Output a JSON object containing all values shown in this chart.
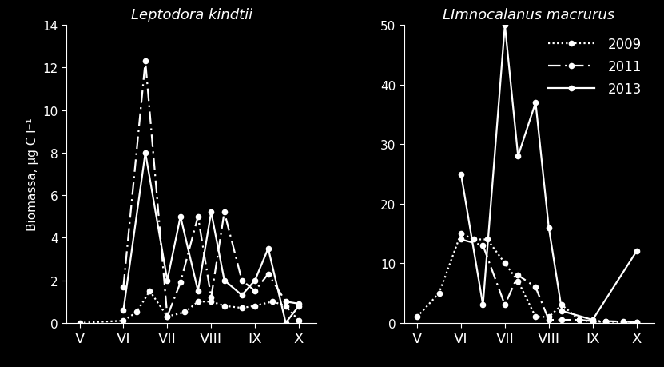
{
  "background_color": "#000000",
  "text_color": "#ffffff",
  "fig_width": 8.31,
  "fig_height": 4.6,
  "left_title": "Leptodora kindtii",
  "right_title": "LImnocalanus macrurus",
  "ylabel": "Biomassa, μg C l⁻¹",
  "x_labels": [
    "V",
    "VI",
    "VII",
    "VIII",
    "IX",
    "X"
  ],
  "x_ticks": [
    5,
    6,
    7,
    8,
    9,
    10
  ],
  "left_ylim": [
    0,
    14
  ],
  "left_yticks": [
    0,
    2,
    4,
    6,
    8,
    10,
    12,
    14
  ],
  "right_ylim": [
    0,
    50
  ],
  "right_yticks": [
    0,
    10,
    20,
    30,
    40,
    50
  ],
  "left_data": {
    "2009": {
      "x": [
        5.0,
        6.0,
        6.3,
        6.6,
        7.0,
        7.4,
        7.7,
        8.0,
        8.3,
        8.7,
        9.0,
        9.4,
        9.7,
        10.0
      ],
      "y": [
        0.0,
        0.1,
        0.5,
        1.5,
        0.3,
        0.5,
        1.0,
        1.0,
        0.8,
        0.7,
        0.8,
        1.0,
        0.8,
        0.1
      ]
    },
    "2011": {
      "x": [
        6.0,
        6.5,
        7.0,
        7.3,
        7.7,
        8.0,
        8.3,
        8.7,
        9.0,
        9.3,
        9.7,
        10.0
      ],
      "y": [
        1.7,
        12.3,
        0.3,
        1.9,
        5.0,
        1.2,
        5.2,
        2.0,
        1.5,
        2.3,
        1.0,
        0.9
      ]
    },
    "2013": {
      "x": [
        6.0,
        6.5,
        7.0,
        7.3,
        7.7,
        8.0,
        8.3,
        8.7,
        9.0,
        9.3,
        9.7,
        10.0
      ],
      "y": [
        0.6,
        8.0,
        2.0,
        5.0,
        1.5,
        5.2,
        2.0,
        1.3,
        2.0,
        3.5,
        0.0,
        0.8
      ]
    }
  },
  "right_data": {
    "2009": {
      "x": [
        5.0,
        5.5,
        6.0,
        6.3,
        6.6,
        7.0,
        7.3,
        7.7,
        8.0,
        8.3,
        8.7,
        9.0,
        9.3,
        9.7,
        10.0
      ],
      "y": [
        1.0,
        5.0,
        15.0,
        14.0,
        14.0,
        10.0,
        7.0,
        1.0,
        1.0,
        3.0,
        0.5,
        0.2,
        0.2,
        0.1,
        0.1
      ]
    },
    "2011": {
      "x": [
        6.0,
        6.5,
        7.0,
        7.3,
        7.7,
        8.0,
        8.3,
        8.7,
        9.0,
        9.3,
        9.7,
        10.0
      ],
      "y": [
        14.0,
        13.0,
        3.0,
        8.0,
        6.0,
        0.5,
        0.5,
        0.5,
        0.3,
        0.3,
        0.2,
        0.1
      ]
    },
    "2013": {
      "x": [
        6.0,
        6.5,
        7.0,
        7.3,
        7.7,
        8.0,
        8.3,
        9.0,
        10.0
      ],
      "y": [
        25.0,
        3.0,
        50.0,
        28.0,
        37.0,
        16.0,
        2.0,
        0.5,
        12.0
      ]
    }
  },
  "legend_labels": [
    "2009",
    "2011",
    "2013"
  ]
}
